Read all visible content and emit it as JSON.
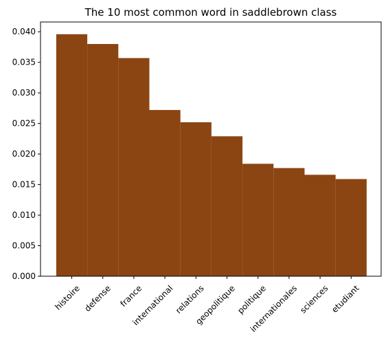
{
  "chart_data": {
    "type": "bar",
    "title": "The 10 most common word in saddlebrown class",
    "xlabel": "",
    "ylabel": "",
    "categories": [
      "histoire",
      "defense",
      "france",
      "international",
      "relations",
      "geopolitique",
      "politique",
      "internationales",
      "sciences",
      "etudiant"
    ],
    "values": [
      0.0396,
      0.038,
      0.0357,
      0.0272,
      0.0252,
      0.0229,
      0.0184,
      0.0177,
      0.0166,
      0.0159
    ],
    "ylim": [
      0,
      0.0416
    ],
    "yticks": [
      "0.000",
      "0.005",
      "0.010",
      "0.015",
      "0.020",
      "0.025",
      "0.030",
      "0.035",
      "0.040"
    ],
    "ytick_values": [
      0,
      0.005,
      0.01,
      0.015,
      0.02,
      0.025,
      0.03,
      0.035,
      0.04
    ],
    "bar_color": "#8b4513",
    "axis_color": "#000000",
    "grid": false,
    "legend": "none"
  }
}
